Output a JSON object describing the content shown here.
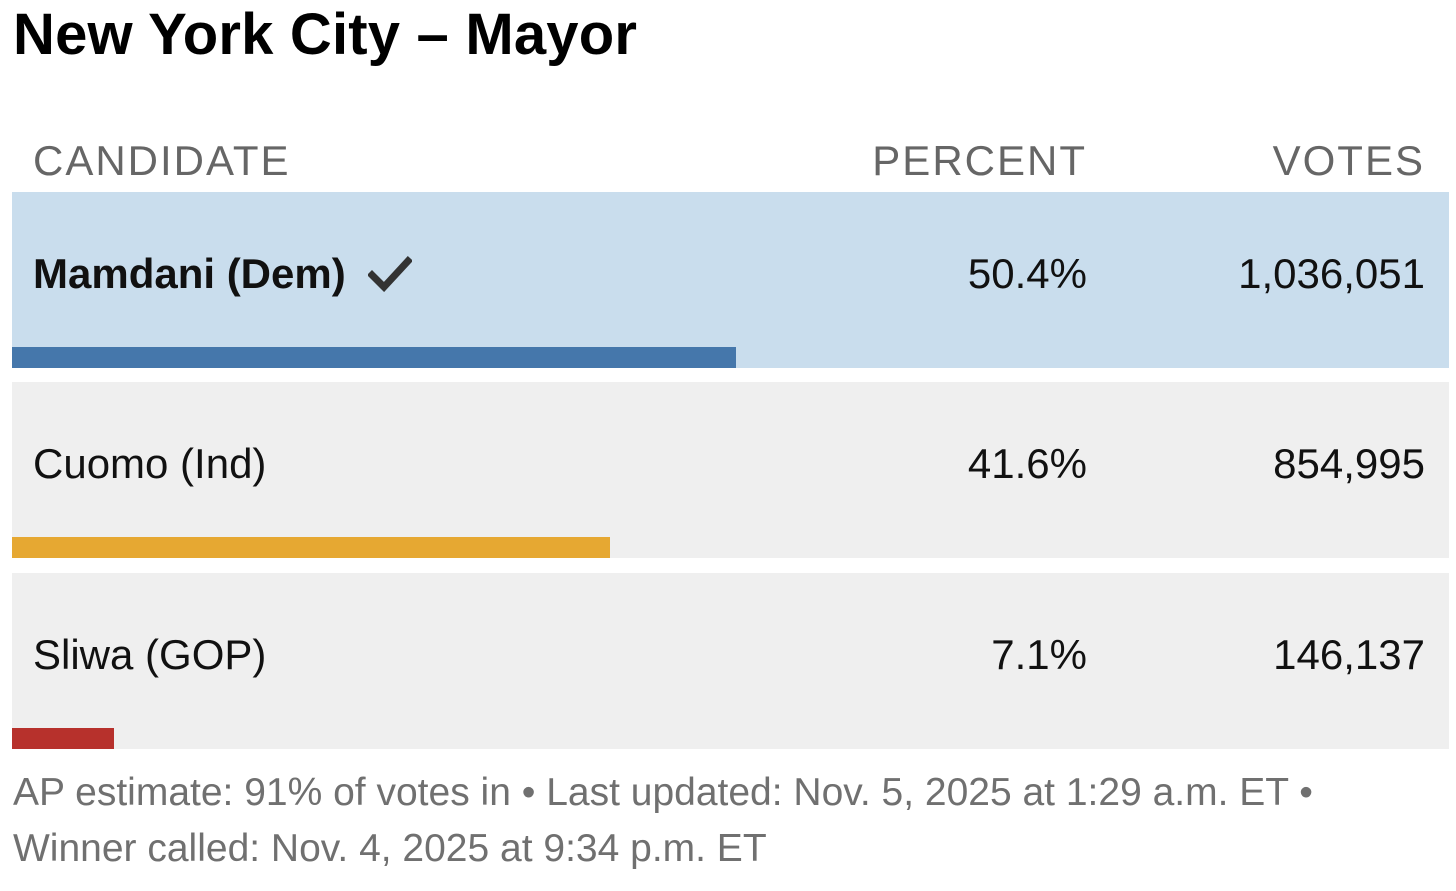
{
  "title": "New York City – Mayor",
  "headers": {
    "candidate": "CANDIDATE",
    "percent": "PERCENT",
    "votes": "VOTES"
  },
  "candidates": [
    {
      "name": "Mamdani (Dem)",
      "percent": "50.4%",
      "percent_value": 50.4,
      "votes": "1,036,051",
      "winner": true,
      "bar_color": "#4577ab",
      "winner_icon": "checkmark-icon"
    },
    {
      "name": "Cuomo (Ind)",
      "percent": "41.6%",
      "percent_value": 41.6,
      "votes": "854,995",
      "winner": false,
      "bar_color": "#e6a832"
    },
    {
      "name": "Sliwa (GOP)",
      "percent": "7.1%",
      "percent_value": 7.1,
      "votes": "146,137",
      "winner": false,
      "bar_color": "#b7312c"
    }
  ],
  "colors": {
    "winner_row_bg": "#c9dded",
    "row_bg": "#efefef"
  },
  "footer": "AP estimate: 91% of votes in • Last updated: Nov. 5, 2025 at 1:29 a.m. ET • Winner called: Nov. 4, 2025 at 9:34 p.m. ET"
}
